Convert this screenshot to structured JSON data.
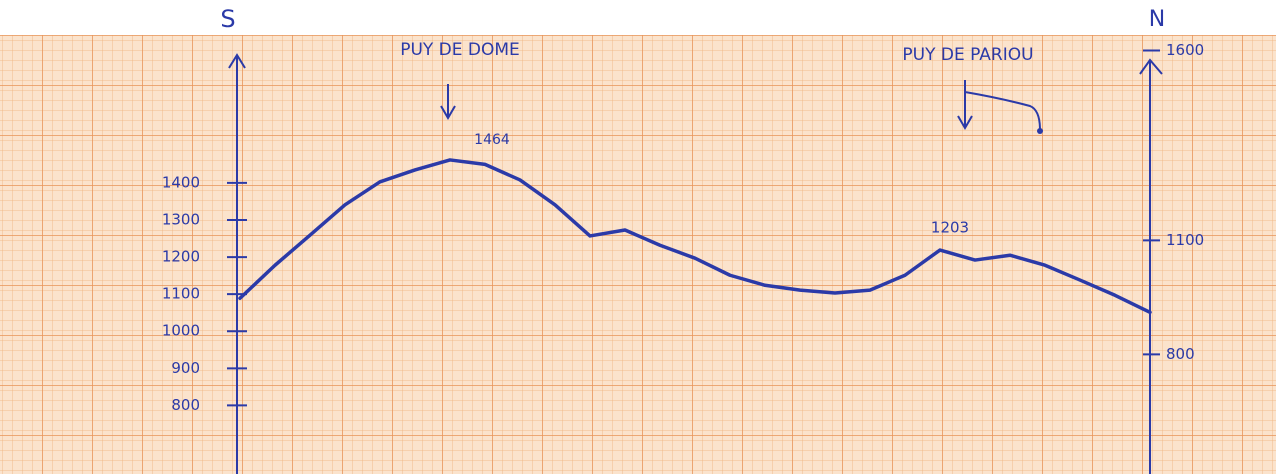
{
  "chart_data": {
    "type": "line",
    "left_label": "S",
    "right_label": "N",
    "annotations": [
      {
        "text": "PUY DE DOME"
      },
      {
        "text": "PUY DE PARIOU"
      },
      {
        "text": "1464"
      },
      {
        "text": "1203"
      }
    ],
    "categories": [
      null,
      null,
      null,
      null,
      null,
      null,
      null,
      null,
      null,
      null,
      null,
      null,
      null,
      null,
      null,
      null,
      null,
      null,
      null,
      null,
      null,
      null,
      null,
      null,
      null,
      null,
      null
    ],
    "series": [
      {
        "color": "#2b3aa8",
        "values": [
          1089,
          1178,
          1259,
          1341,
          1403,
          1435,
          1462,
          1450,
          1408,
          1341,
          1257,
          1273,
          1232,
          1197,
          1151,
          1124,
          1111,
          1103,
          1111,
          1151,
          1219,
          1192,
          1205,
          1178,
          1138,
          1097,
          1051
        ]
      }
    ],
    "ylim": [
      615,
      1745
    ],
    "yticks": [
      800,
      900,
      1000,
      1100,
      1200,
      1300,
      1400
    ],
    "y2lim": [
      485,
      1588
    ],
    "y2ticks": [
      800,
      1100,
      1600
    ],
    "grid": true
  }
}
